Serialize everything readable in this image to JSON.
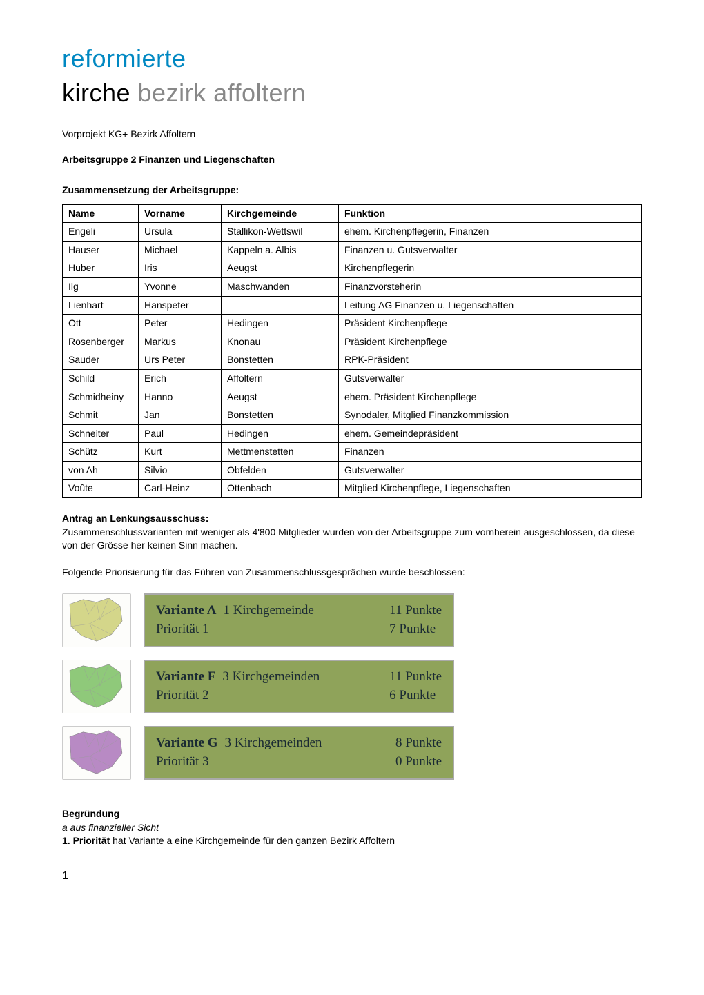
{
  "logo": {
    "line1": "reformierte",
    "line1_color": "#0088c2",
    "line2_bold": "kirche",
    "line2_rest": " bezirk affoltern",
    "line2_rest_color": "#888888"
  },
  "vorprojekt": "Vorprojekt KG+ Bezirk Affoltern",
  "heading_arbeitsgruppe": "Arbeitsgruppe 2 Finanzen und Liegenschaften",
  "heading_zusammensetzung": "Zusammensetzung der Arbeitsgruppe:",
  "table": {
    "columns": [
      "Name",
      "Vorname",
      "Kirchgemeinde",
      "Funktion"
    ],
    "rows": [
      [
        "Engeli",
        "Ursula",
        "Stallikon-Wettswil",
        "ehem. Kirchenpflegerin, Finanzen"
      ],
      [
        "Hauser",
        "Michael",
        "Kappeln a. Albis",
        "Finanzen u. Gutsverwalter"
      ],
      [
        "Huber",
        "Iris",
        "Aeugst",
        "Kirchenpflegerin"
      ],
      [
        "Ilg",
        "Yvonne",
        "Maschwanden",
        "Finanzvorsteherin"
      ],
      [
        "Lienhart",
        "Hanspeter",
        "",
        "Leitung AG Finanzen u. Liegenschaften"
      ],
      [
        "Ott",
        "Peter",
        "Hedingen",
        "Präsident Kirchenpflege"
      ],
      [
        "Rosenberger",
        "Markus",
        "Knonau",
        "Präsident Kirchenpflege"
      ],
      [
        "Sauder",
        "Urs Peter",
        "Bonstetten",
        "RPK-Präsident"
      ],
      [
        "Schild",
        "Erich",
        "Affoltern",
        "Gutsverwalter"
      ],
      [
        "Schmidheiny",
        "Hanno",
        "Aeugst",
        "ehem. Präsident Kirchenpflege"
      ],
      [
        "Schmit",
        "Jan",
        "Bonstetten",
        "Synodaler, Mitglied Finanzkommission"
      ],
      [
        "Schneiter",
        "Paul",
        "Hedingen",
        "ehem. Gemeindepräsident"
      ],
      [
        "Schütz",
        "Kurt",
        "Mettmenstetten",
        "Finanzen"
      ],
      [
        "von Ah",
        "Silvio",
        "Obfelden",
        "Gutsverwalter"
      ],
      [
        "Voûte",
        "Carl-Heinz",
        "Ottenbach",
        "Mitglied Kirchenpflege, Liegenschaften"
      ]
    ]
  },
  "antrag_heading": "Antrag an Lenkungsausschuss:",
  "antrag_text": "Zusammenschlussvarianten mit weniger als 4'800 Mitglieder wurden von der Arbeitsgruppe zum vornherein ausgeschlossen, da diese von der Grösse her keinen Sinn machen.",
  "folgende_text": "Folgende Priorisierung für das Führen von Zusammenschlussgesprächen wurde beschlossen:",
  "variants": [
    {
      "title": "Variante A",
      "sub": "1 Kirchgemeinde",
      "prio": "Priorität 1",
      "punkte1": "11 Punkte",
      "punkte2": "7 Punkte",
      "bg": "#8fa35a",
      "text_color": "#1a2a33",
      "map_color": "#d4d68a"
    },
    {
      "title": "Variante F",
      "sub": "3 Kirchgemeinden",
      "prio": "Priorität 2",
      "punkte1": "11 Punkte",
      "punkte2": "6 Punkte",
      "bg": "#8fa35a",
      "text_color": "#1a2a33",
      "map_color": "#8fc97a"
    },
    {
      "title": "Variante G",
      "sub": "3 Kirchgemeinden",
      "prio": "Priorität 3",
      "punkte1": "8 Punkte",
      "punkte2": "0 Punkte",
      "bg": "#8fa35a",
      "text_color": "#1a2a33",
      "map_color": "#b88ac4"
    }
  ],
  "begruendung_heading": "Begründung",
  "begruendung_italic": "a aus finanzieller Sicht",
  "begruendung_bold": "1. Priorität",
  "begruendung_rest": " hat Variante a eine Kirchgemeinde für den ganzen Bezirk Affoltern",
  "page_number": "1"
}
